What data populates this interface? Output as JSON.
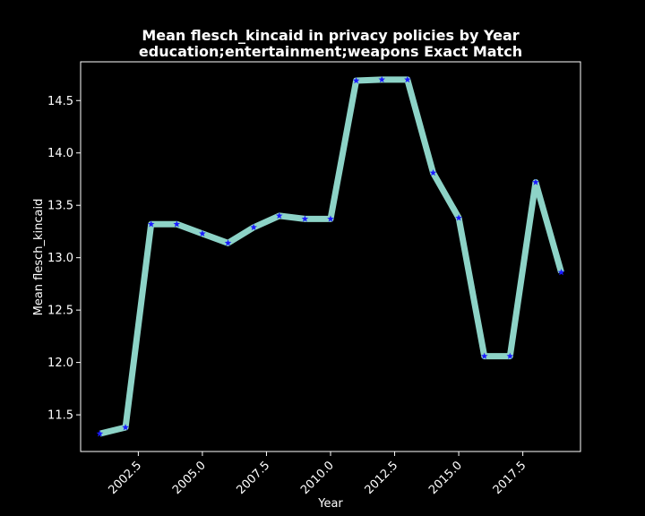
{
  "chart_data": {
    "type": "line",
    "title": "Mean flesch_kincaid in privacy policies by Year",
    "subtitle": "education;entertainment;weapons Exact Match",
    "xlabel": "Year",
    "ylabel": "Mean flesch_kincaid",
    "xlim": [
      2000.25,
      2019.75
    ],
    "ylim": [
      11.15,
      14.87
    ],
    "xticks": [
      "2002.5",
      "2005.0",
      "2007.5",
      "2010.0",
      "2012.5",
      "2015.0",
      "2017.5"
    ],
    "yticks": [
      "11.5",
      "12.0",
      "12.5",
      "13.0",
      "13.5",
      "14.0",
      "14.5"
    ],
    "grid": false,
    "x": [
      2001,
      2002,
      2003,
      2004,
      2005,
      2006,
      2007,
      2008,
      2009,
      2010,
      2011,
      2012,
      2013,
      2014,
      2015,
      2016,
      2017,
      2018,
      2019
    ],
    "values": [
      11.32,
      11.38,
      13.32,
      13.32,
      13.23,
      13.14,
      13.29,
      13.4,
      13.37,
      13.37,
      14.69,
      14.7,
      14.7,
      13.81,
      13.38,
      12.06,
      12.06,
      13.72,
      12.86
    ],
    "colors": {
      "background": "#000000",
      "line": "#8dd3c7",
      "marker": "#1a1aff",
      "axes": "#ffffff",
      "text": "#ffffff"
    }
  }
}
